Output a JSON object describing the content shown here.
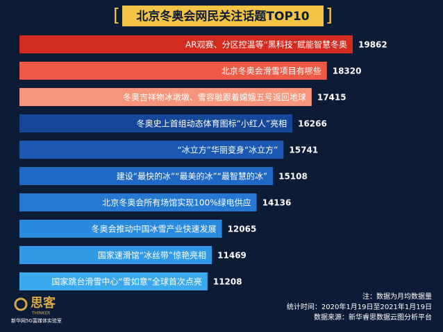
{
  "chart_data": {
    "type": "barh",
    "title": "北京冬奥会网民关注话题TOP10",
    "categories": [
      "AR观赛、分区控温等“黑科技”赋能智慧冬奥",
      "北京冬奥会滑雪项目有哪些",
      "冬奥吉祥物冰墩墩、雪容融跟着嫦娥五号返回地球",
      "冬奥史上首组动态体育图标“小红人”亮相",
      "“冰立方”华丽变身“冰立方”",
      "建设“最快的冰”“最美的冰”“最智慧的冰”",
      "北京冬奥会所有场馆实现100%绿电供应",
      "冬奥会推动中国冰雪产业快速发展",
      "国家速滑馆“冰丝带”惊艳亮相",
      "国家跳台滑雪中心“雪如意”全球首次点亮"
    ],
    "values": [
      19862,
      18320,
      17415,
      16266,
      15741,
      15108,
      14136,
      12065,
      11469,
      11208
    ],
    "colors": [
      "#d42b1f",
      "#ef5a47",
      "#f7957c",
      "#15489a",
      "#1b58b0",
      "#1f68c4",
      "#2478d2",
      "#2a8ade",
      "#309ae6",
      "#3aa9ee"
    ],
    "notes": [
      "注：数据为月均数据量",
      "统计时间：2020年1月19日至2021年1月19日",
      "数据来源：新华睿思数据云图分析平台"
    ],
    "logo": {
      "name": "思客",
      "subname": "THINKER",
      "org": "新华网5G富媒体实验室"
    }
  }
}
